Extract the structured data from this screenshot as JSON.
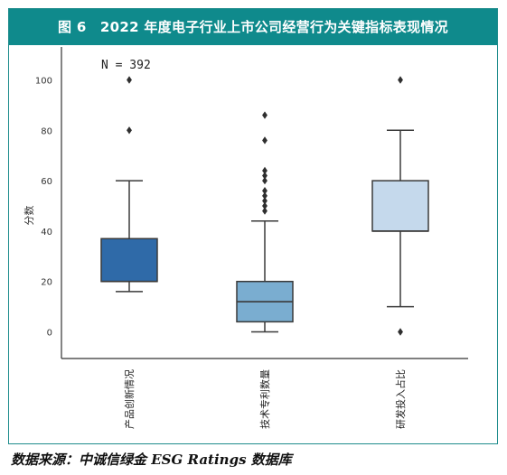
{
  "figure": {
    "title": "图 6　2022 年度电子行业上市公司经营行为关键指标表现情况",
    "source": "数据来源：中诚信绿金 ESG Ratings 数据库",
    "colors": {
      "header_bg": "#0f8a8c",
      "border": "#1e8c8c"
    }
  },
  "chart_data": {
    "type": "box",
    "title": "",
    "annotation": "N = 392",
    "xlabel": "",
    "ylabel": "分数",
    "ylim": [
      -10,
      107
    ],
    "yticks": [
      0,
      20,
      40,
      60,
      80,
      100
    ],
    "grid": false,
    "categories": [
      "产品创新情况",
      "技术专利数量",
      "研发投入占比"
    ],
    "boxes": [
      {
        "category": "产品创新情况",
        "whisker_low": 16,
        "q1": 20,
        "median": 20,
        "q3": 37,
        "whisker_high": 60,
        "outliers": [
          80,
          100
        ],
        "color": "#2f6aa8"
      },
      {
        "category": "技术专利数量",
        "whisker_low": 0,
        "q1": 4,
        "median": 12,
        "q3": 20,
        "whisker_high": 44,
        "outliers": [
          48,
          50,
          52,
          54,
          56,
          60,
          62,
          64,
          76,
          86
        ],
        "color": "#7aadd0"
      },
      {
        "category": "研发投入占比",
        "whisker_low": 10,
        "q1": 40,
        "median": 40,
        "q3": 60,
        "whisker_high": 80,
        "outliers": [
          0,
          100
        ],
        "color": "#c5d9ec"
      }
    ]
  }
}
